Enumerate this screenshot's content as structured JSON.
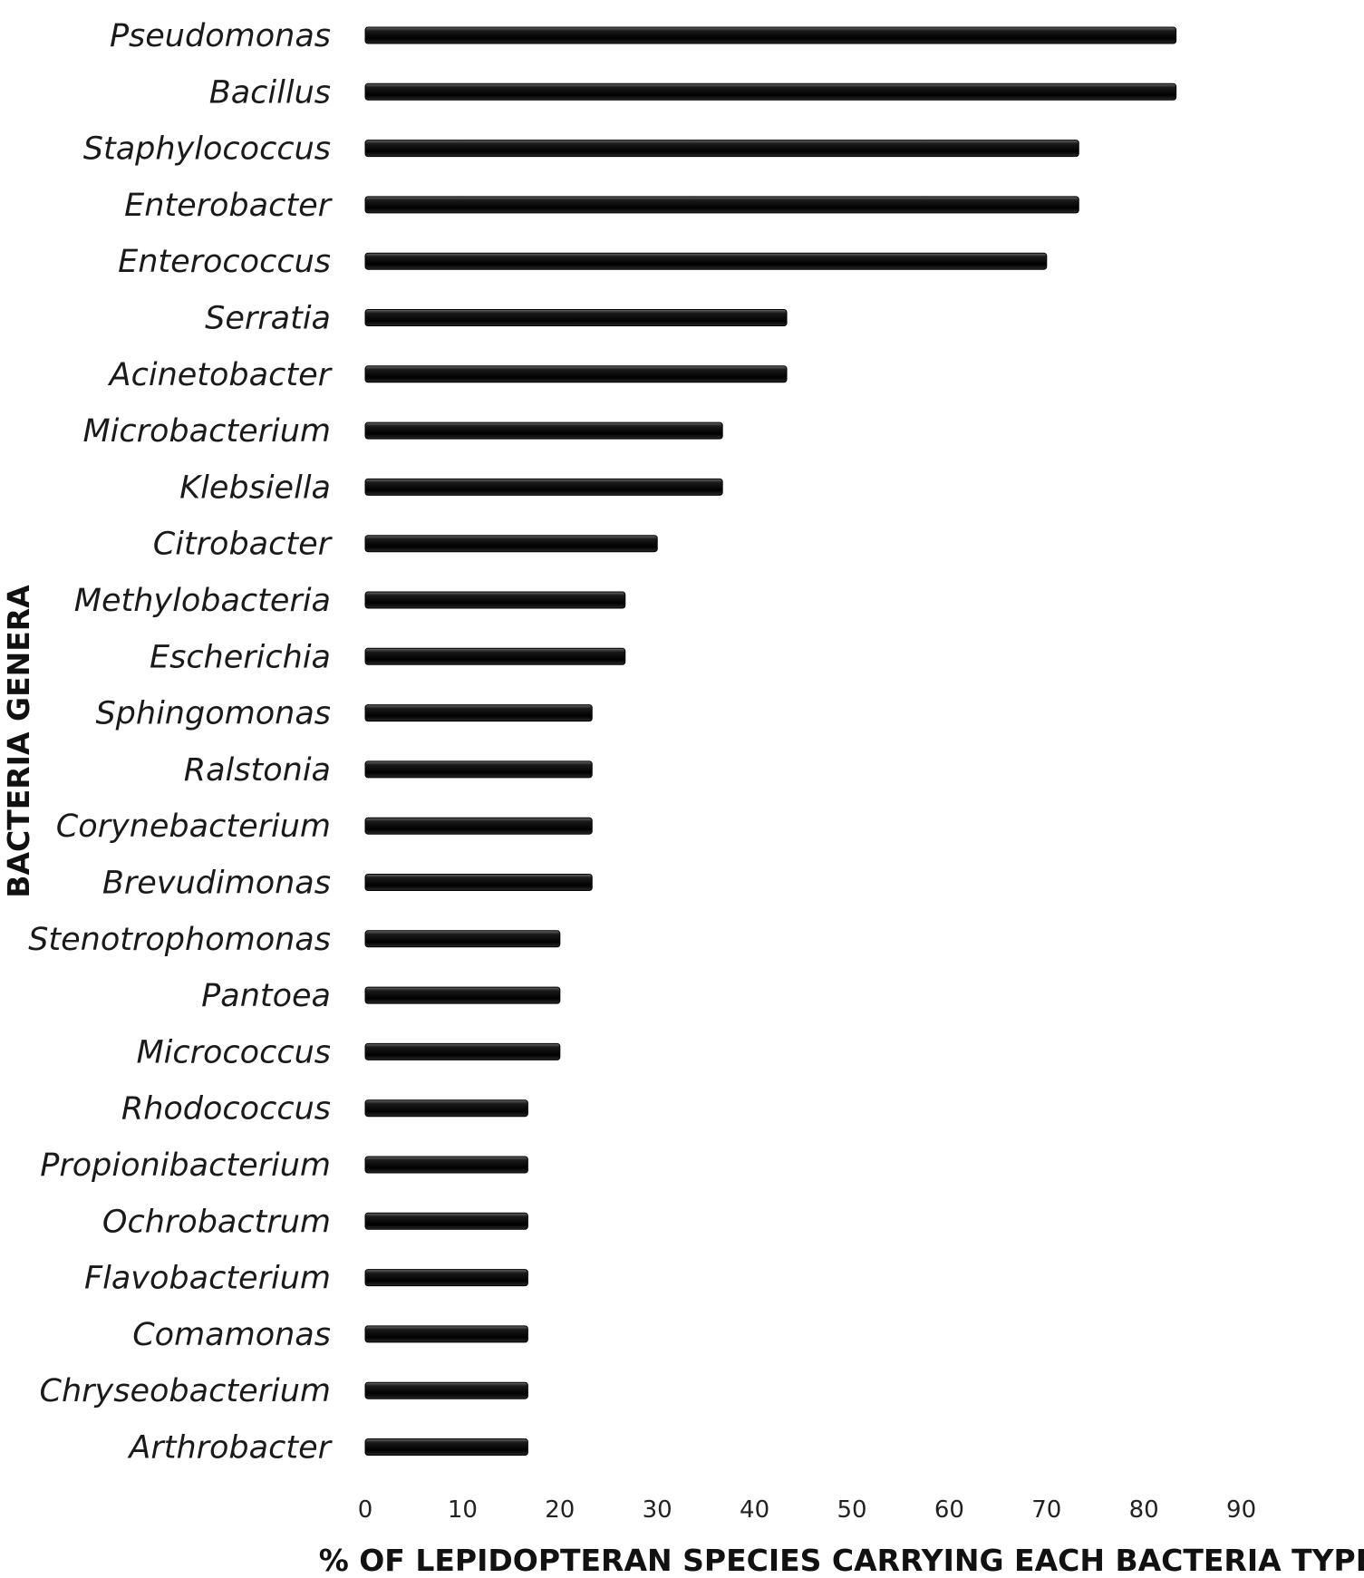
{
  "chart_data": {
    "type": "bar",
    "orientation": "horizontal",
    "title": "",
    "xlabel": "% OF LEPIDOPTERAN SPECIES CARRYING EACH BACTERIA TYPE",
    "ylabel": "BACTERIA GENERA",
    "xlim": [
      0,
      90
    ],
    "xticks": [
      "0",
      "10",
      "20",
      "30",
      "40",
      "50",
      "60",
      "70",
      "80",
      "90"
    ],
    "grid": false,
    "legend": "none",
    "bar_color": "#111111",
    "categories": [
      "Pseudomonas",
      "Bacillus",
      "Staphylococcus",
      "Enterobacter",
      "Enterococcus",
      "Serratia",
      "Acinetobacter",
      "Microbacterium",
      "Klebsiella",
      "Citrobacter",
      "Methylobacteria",
      "Escherichia",
      "Sphingomonas",
      "Ralstonia",
      "Corynebacterium",
      "Brevudimonas",
      "Stenotrophomonas",
      "Pantoea",
      "Micrococcus",
      "Rhodococcus",
      "Propionibacterium",
      "Ochrobactrum",
      "Flavobacterium",
      "Comamonas",
      "Chryseobacterium",
      "Arthrobacter"
    ],
    "values": [
      83.3,
      83.3,
      73.3,
      73.3,
      70,
      43.3,
      43.3,
      36.7,
      36.7,
      30,
      26.7,
      26.7,
      23.3,
      23.3,
      23.3,
      23.3,
      20,
      20,
      20,
      16.7,
      16.7,
      16.7,
      16.7,
      16.7,
      16.7,
      16.7
    ]
  }
}
